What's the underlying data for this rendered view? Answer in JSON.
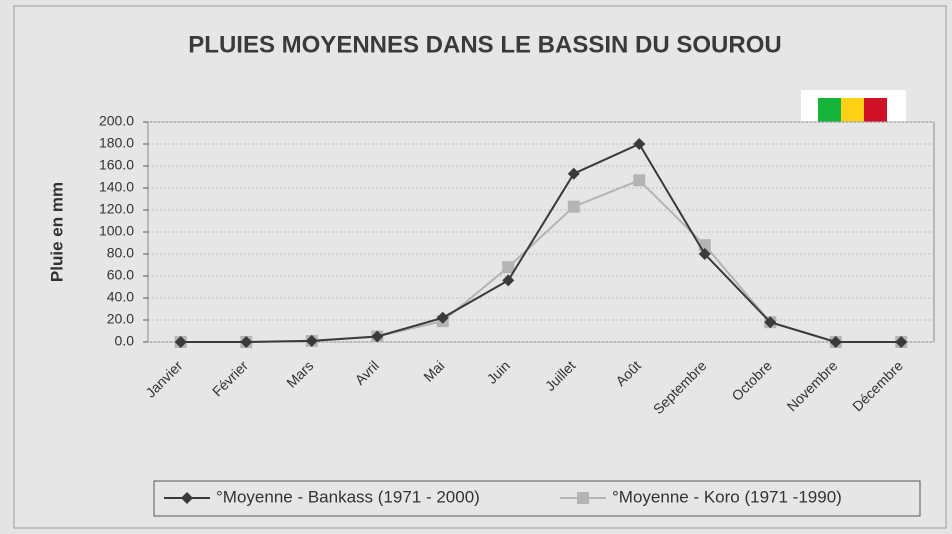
{
  "chart_data": {
    "type": "line",
    "title": "PLUIES MOYENNES DANS LE BASSIN DU SOUROU",
    "y_label": "Pluie en mm",
    "categories": [
      "Janvier",
      "Février",
      "Mars",
      "Avril",
      "Mai",
      "Juin",
      "Juillet",
      "Août",
      "Septembre",
      "Octobre",
      "Novembre",
      "Décembre"
    ],
    "series": [
      {
        "name": "°Moyenne - Bankass (1971 - 2000)",
        "color": "#3a3a3a",
        "values": [
          0,
          0,
          1,
          5,
          22,
          56,
          153,
          180,
          80,
          18,
          0,
          0
        ]
      },
      {
        "name": "°Moyenne - Koro (1971 -1990)",
        "color": "#b4b4b4",
        "values": [
          0,
          0,
          1,
          5,
          19,
          68,
          123,
          147,
          88,
          18,
          0,
          0
        ]
      }
    ],
    "ylim": [
      0,
      200
    ],
    "yticks": [
      {
        "value": 0,
        "label": "0.0"
      },
      {
        "value": 20,
        "label": "20.0"
      },
      {
        "value": 40,
        "label": "40.0"
      },
      {
        "value": 60,
        "label": "60.0"
      },
      {
        "value": 80,
        "label": "80.0"
      },
      {
        "value": 100,
        "label": "100.0"
      },
      {
        "value": 120,
        "label": "120.0"
      },
      {
        "value": 140,
        "label": "140.0"
      },
      {
        "value": 160,
        "label": "160.0"
      },
      {
        "value": 180,
        "label": "180.0"
      },
      {
        "value": 200,
        "label": "200.0"
      }
    ],
    "grid": true
  }
}
